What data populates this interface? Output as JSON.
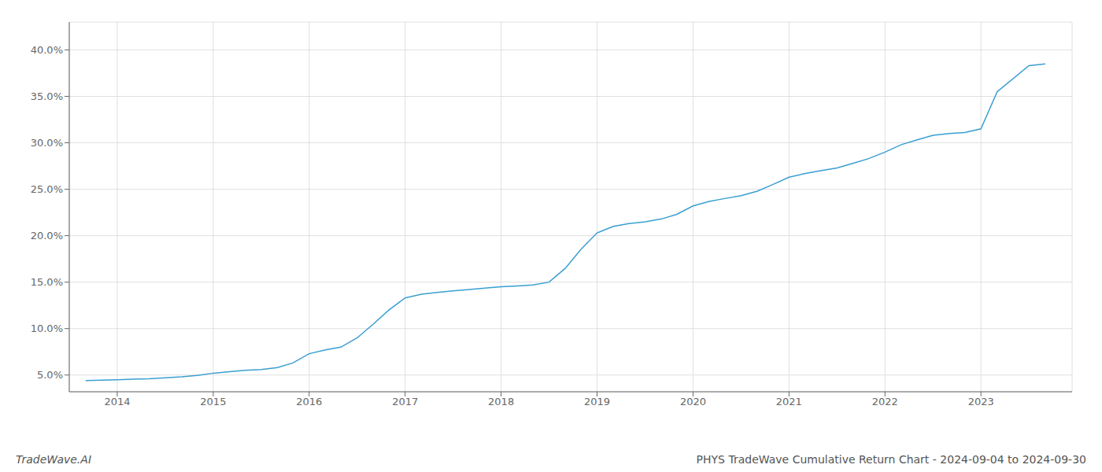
{
  "chart_data": {
    "type": "line",
    "title": "PHYS TradeWave Cumulative Return Chart - 2024-09-04 to 2024-09-30",
    "annotations": [
      {
        "text": "TradeWave.AI"
      }
    ],
    "x": [
      2013.67,
      2014.0,
      2014.17,
      2014.33,
      2014.5,
      2014.67,
      2014.83,
      2015.0,
      2015.17,
      2015.33,
      2015.5,
      2015.67,
      2015.83,
      2016.0,
      2016.17,
      2016.33,
      2016.5,
      2016.67,
      2016.83,
      2017.0,
      2017.17,
      2017.33,
      2017.5,
      2017.67,
      2017.83,
      2018.0,
      2018.17,
      2018.33,
      2018.5,
      2018.67,
      2018.83,
      2019.0,
      2019.17,
      2019.33,
      2019.5,
      2019.67,
      2019.83,
      2020.0,
      2020.17,
      2020.33,
      2020.5,
      2020.67,
      2020.83,
      2021.0,
      2021.17,
      2021.33,
      2021.5,
      2021.67,
      2021.83,
      2022.0,
      2022.17,
      2022.33,
      2022.5,
      2022.67,
      2022.83,
      2023.0,
      2023.17,
      2023.5,
      2023.67
    ],
    "values": [
      4.4,
      4.5,
      4.55,
      4.6,
      4.7,
      4.8,
      4.95,
      5.2,
      5.35,
      5.5,
      5.6,
      5.8,
      6.3,
      7.3,
      7.7,
      8.0,
      9.0,
      10.5,
      12.0,
      13.3,
      13.7,
      13.9,
      14.05,
      14.2,
      14.35,
      14.5,
      14.6,
      14.7,
      15.0,
      16.5,
      18.5,
      20.3,
      21.0,
      21.3,
      21.5,
      21.8,
      22.3,
      23.2,
      23.7,
      24.0,
      24.3,
      24.8,
      25.5,
      26.3,
      26.7,
      27.0,
      27.3,
      27.8,
      28.3,
      29.0,
      29.8,
      30.3,
      30.8,
      31.0,
      31.1,
      31.5,
      35.5,
      38.3,
      38.5
    ],
    "color": "#3a9fd1",
    "xlim": [
      2013.5,
      2023.95
    ],
    "xticks": [
      2014,
      2015,
      2016,
      2017,
      2018,
      2019,
      2020,
      2021,
      2022,
      2023
    ],
    "ylim": [
      3.2,
      43.0
    ],
    "yticks": [
      {
        "value": 5.0,
        "label": "5.0%"
      },
      {
        "value": 10.0,
        "label": "10.0%"
      },
      {
        "value": 15.0,
        "label": "15.0%"
      },
      {
        "value": 20.0,
        "label": "20.0%"
      },
      {
        "value": 25.0,
        "label": "25.0%"
      },
      {
        "value": 30.0,
        "label": "30.0%"
      },
      {
        "value": 35.0,
        "label": "35.0%"
      },
      {
        "value": 40.0,
        "label": "40.0%"
      }
    ],
    "grid": true
  }
}
